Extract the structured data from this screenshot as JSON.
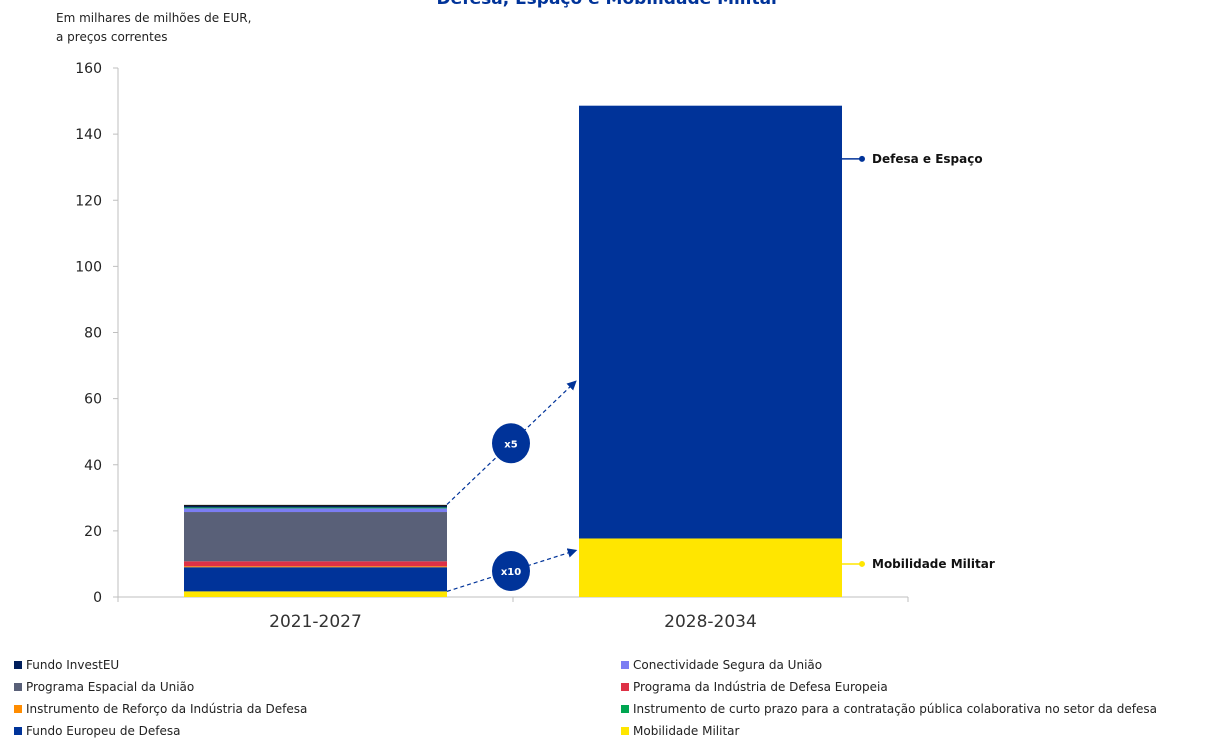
{
  "chart_data": {
    "type": "bar",
    "stacked": true,
    "title": "Defesa, Espaço e Mobilidade Militar",
    "ylabel_lines": [
      "Em milhares de milhões de EUR,",
      "a preços correntes"
    ],
    "ylim": [
      0,
      160
    ],
    "yticks": [
      0,
      20,
      40,
      60,
      80,
      100,
      120,
      140,
      160
    ],
    "categories": [
      "2021-2027",
      "2028-2034"
    ],
    "series": [
      {
        "name": "Mobilidade Militar",
        "color": "#FFE600",
        "values": [
          1.7,
          17.7
        ]
      },
      {
        "name": "Fundo Europeu de Defesa",
        "color": "#003399",
        "values": [
          7.3,
          0
        ]
      },
      {
        "name": "Instrumento de Reforço da Indústria da Defesa",
        "color": "#FF8C00",
        "values": [
          0.3,
          0
        ]
      },
      {
        "name": "Programa da Indústria de Defesa Europeia",
        "color": "#DE3146",
        "values": [
          1.5,
          0
        ]
      },
      {
        "name": "Programa Espacial da União",
        "color": "#596078",
        "values": [
          14.9,
          0
        ]
      },
      {
        "name": "Conectividade Segura da União",
        "color": "#7B7DF3",
        "values": [
          1.1,
          0
        ]
      },
      {
        "name": "Instrumento de curto prazo para a contratação pública colaborativa no setor da defesa",
        "color": "#00A651",
        "values": [
          0.3,
          0
        ]
      },
      {
        "name": "Fundo InvestEU",
        "color": "#001E5B",
        "values": [
          0.6,
          0
        ]
      },
      {
        "name": "Defesa e Espaço",
        "color": "#003399",
        "values": [
          0,
          130.9
        ]
      }
    ],
    "annotations": [
      {
        "text": "x5",
        "from_category": "2021-2027",
        "to_category": "2028-2034",
        "from_value": 28,
        "to_value": 65
      },
      {
        "text": "x10",
        "from_category": "2021-2027",
        "to_category": "2028-2034",
        "from_value": 1.7,
        "to_value": 14
      }
    ],
    "side_labels": [
      {
        "text": "Defesa e Espaço",
        "value": 132.5,
        "color": "#003399"
      },
      {
        "text": "Mobilidade Militar",
        "value": 10,
        "color": "#FFE600"
      }
    ],
    "legend": [
      {
        "name": "Fundo InvestEU",
        "color": "#001E5B",
        "column": "left"
      },
      {
        "name": "Programa Espacial da União",
        "color": "#596078",
        "column": "left"
      },
      {
        "name": "Instrumento de Reforço da Indústria da Defesa",
        "color": "#FF8C00",
        "column": "left"
      },
      {
        "name": "Fundo Europeu de Defesa",
        "color": "#003399",
        "column": "left"
      },
      {
        "name": "Conectividade Segura da União",
        "color": "#7B7DF3",
        "column": "right"
      },
      {
        "name": "Programa da Indústria de Defesa Europeia",
        "color": "#DE3146",
        "column": "right"
      },
      {
        "name": "Instrumento de curto prazo para a contratação pública colaborativa no setor da defesa",
        "color": "#00A651",
        "column": "right"
      },
      {
        "name": "Mobilidade Militar",
        "color": "#FFE600",
        "column": "right"
      }
    ],
    "axis_color": "#BFBFBF",
    "title_color": "#003399"
  }
}
